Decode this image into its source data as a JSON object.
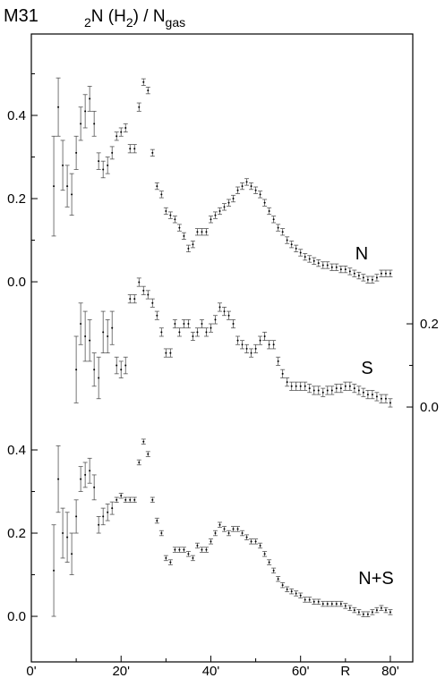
{
  "title": "M31",
  "ylabel": {
    "parts": [
      "2",
      "N (H",
      "2",
      ") / N",
      "gas"
    ],
    "subscript": [
      true,
      false,
      true,
      false,
      true
    ]
  },
  "x_axis": {
    "xlim": [
      0,
      85
    ],
    "xticks": [
      {
        "value": 0,
        "label": "0'"
      },
      {
        "value": 20,
        "label": "20'"
      },
      {
        "value": 40,
        "label": "40'"
      },
      {
        "value": 60,
        "label": "60'"
      },
      {
        "value": 80,
        "label": "80'"
      }
    ],
    "minor_xticks": [
      10,
      30,
      50,
      70
    ],
    "label": "R"
  },
  "chart_data": [
    {
      "type": "scatter",
      "label": "N",
      "axis_side": "left",
      "ylim": [
        -0.03,
        0.6
      ],
      "yticks": [
        {
          "value": 0,
          "label": "0.0"
        },
        {
          "value": 0.2,
          "label": "0.2"
        },
        {
          "value": 0.4,
          "label": "0.4"
        }
      ],
      "minor_yticks": [
        0.1,
        0.3,
        0.5
      ],
      "x": [
        5,
        6,
        7,
        8,
        9,
        10,
        11,
        12,
        13,
        14,
        15,
        16,
        17,
        18,
        19,
        20,
        21,
        22,
        23,
        24,
        25,
        26,
        27,
        28,
        29,
        30,
        31,
        32,
        33,
        34,
        35,
        36,
        37,
        38,
        39,
        40,
        41,
        42,
        43,
        44,
        45,
        46,
        47,
        48,
        49,
        50,
        51,
        52,
        53,
        54,
        55,
        56,
        57,
        58,
        59,
        60,
        61,
        62,
        63,
        64,
        65,
        66,
        67,
        68,
        69,
        70,
        71,
        72,
        73,
        74,
        75,
        76,
        77,
        78,
        79,
        80
      ],
      "values": [
        0.23,
        0.42,
        0.28,
        0.23,
        0.21,
        0.31,
        0.38,
        0.41,
        0.44,
        0.38,
        0.29,
        0.27,
        0.28,
        0.31,
        0.35,
        0.36,
        0.37,
        0.32,
        0.32,
        0.42,
        0.48,
        0.46,
        0.31,
        0.23,
        0.21,
        0.17,
        0.16,
        0.15,
        0.13,
        0.11,
        0.08,
        0.09,
        0.12,
        0.12,
        0.12,
        0.15,
        0.16,
        0.17,
        0.18,
        0.19,
        0.2,
        0.22,
        0.23,
        0.24,
        0.23,
        0.22,
        0.21,
        0.19,
        0.17,
        0.15,
        0.13,
        0.12,
        0.1,
        0.09,
        0.08,
        0.07,
        0.06,
        0.055,
        0.05,
        0.045,
        0.04,
        0.04,
        0.035,
        0.035,
        0.03,
        0.03,
        0.025,
        0.02,
        0.015,
        0.01,
        0.005,
        0.005,
        0.01,
        0.02,
        0.02,
        0.02
      ],
      "errors": [
        0.12,
        0.07,
        0.06,
        0.05,
        0.05,
        0.04,
        0.04,
        0.04,
        0.03,
        0.03,
        0.02,
        0.02,
        0.02,
        0.015,
        0.01,
        0.01,
        0.01,
        0.01,
        0.01,
        0.01,
        0.008,
        0.008,
        0.008,
        0.008,
        0.008,
        0.008,
        0.008,
        0.008,
        0.008,
        0.008,
        0.008,
        0.008,
        0.008,
        0.008,
        0.008,
        0.008,
        0.008,
        0.008,
        0.008,
        0.008,
        0.008,
        0.008,
        0.008,
        0.008,
        0.008,
        0.008,
        0.008,
        0.008,
        0.008,
        0.008,
        0.008,
        0.008,
        0.008,
        0.008,
        0.008,
        0.008,
        0.008,
        0.008,
        0.008,
        0.008,
        0.008,
        0.008,
        0.008,
        0.008,
        0.008,
        0.008,
        0.008,
        0.008,
        0.008,
        0.008,
        0.008,
        0.008,
        0.008,
        0.008,
        0.008,
        0.008
      ]
    },
    {
      "type": "scatter",
      "label": "S",
      "axis_side": "right",
      "ylim": [
        -0.03,
        0.6
      ],
      "yticks": [
        {
          "value": 0,
          "label": "0.0"
        },
        {
          "value": 0.2,
          "label": "0.2"
        }
      ],
      "minor_yticks": [
        0.1
      ],
      "x": [
        10,
        11,
        12,
        13,
        14,
        15,
        16,
        17,
        18,
        19,
        20,
        21,
        22,
        23,
        24,
        25,
        26,
        27,
        28,
        29,
        30,
        31,
        32,
        33,
        34,
        35,
        36,
        37,
        38,
        39,
        40,
        41,
        42,
        43,
        44,
        45,
        46,
        47,
        48,
        49,
        50,
        51,
        52,
        53,
        54,
        55,
        56,
        57,
        58,
        59,
        60,
        61,
        62,
        63,
        64,
        65,
        66,
        67,
        68,
        69,
        70,
        71,
        72,
        73,
        74,
        75,
        76,
        77,
        78,
        79,
        80
      ],
      "values": [
        0.09,
        0.2,
        0.17,
        0.16,
        0.09,
        0.07,
        0.18,
        0.17,
        0.19,
        0.1,
        0.09,
        0.1,
        0.26,
        0.26,
        0.3,
        0.28,
        0.27,
        0.25,
        0.22,
        0.18,
        0.13,
        0.13,
        0.2,
        0.18,
        0.2,
        0.2,
        0.17,
        0.18,
        0.2,
        0.18,
        0.19,
        0.21,
        0.24,
        0.23,
        0.22,
        0.2,
        0.16,
        0.15,
        0.14,
        0.13,
        0.14,
        0.16,
        0.17,
        0.15,
        0.15,
        0.11,
        0.08,
        0.06,
        0.05,
        0.05,
        0.05,
        0.05,
        0.045,
        0.04,
        0.04,
        0.035,
        0.04,
        0.04,
        0.045,
        0.045,
        0.05,
        0.05,
        0.045,
        0.04,
        0.035,
        0.03,
        0.03,
        0.025,
        0.02,
        0.02,
        0.01
      ],
      "errors": [
        0.08,
        0.05,
        0.06,
        0.05,
        0.04,
        0.05,
        0.05,
        0.04,
        0.04,
        0.02,
        0.02,
        0.02,
        0.01,
        0.01,
        0.01,
        0.01,
        0.01,
        0.01,
        0.01,
        0.01,
        0.01,
        0.01,
        0.01,
        0.01,
        0.01,
        0.01,
        0.01,
        0.01,
        0.01,
        0.01,
        0.01,
        0.01,
        0.01,
        0.01,
        0.01,
        0.01,
        0.01,
        0.01,
        0.01,
        0.01,
        0.01,
        0.01,
        0.01,
        0.01,
        0.01,
        0.01,
        0.01,
        0.01,
        0.01,
        0.01,
        0.01,
        0.01,
        0.01,
        0.01,
        0.01,
        0.01,
        0.01,
        0.01,
        0.01,
        0.01,
        0.01,
        0.01,
        0.01,
        0.01,
        0.01,
        0.01,
        0.01,
        0.01,
        0.01,
        0.01,
        0.01
      ]
    },
    {
      "type": "scatter",
      "label": "N+S",
      "axis_side": "left",
      "ylim": [
        -0.03,
        0.6
      ],
      "yticks": [
        {
          "value": 0,
          "label": "0.0"
        },
        {
          "value": 0.2,
          "label": "0.2"
        },
        {
          "value": 0.4,
          "label": "0.4"
        }
      ],
      "minor_yticks": [
        0.1,
        0.3
      ],
      "x": [
        5,
        6,
        7,
        8,
        9,
        10,
        11,
        12,
        13,
        14,
        15,
        16,
        17,
        18,
        19,
        20,
        21,
        22,
        23,
        24,
        25,
        26,
        27,
        28,
        29,
        30,
        31,
        32,
        33,
        34,
        35,
        36,
        37,
        38,
        39,
        40,
        41,
        42,
        43,
        44,
        45,
        46,
        47,
        48,
        49,
        50,
        51,
        52,
        53,
        54,
        55,
        56,
        57,
        58,
        59,
        60,
        61,
        62,
        63,
        64,
        65,
        66,
        67,
        68,
        69,
        70,
        71,
        72,
        73,
        74,
        75,
        76,
        77,
        78,
        79,
        80
      ],
      "values": [
        0.11,
        0.33,
        0.2,
        0.19,
        0.15,
        0.24,
        0.33,
        0.34,
        0.35,
        0.31,
        0.22,
        0.24,
        0.25,
        0.26,
        0.28,
        0.29,
        0.28,
        0.28,
        0.28,
        0.37,
        0.42,
        0.39,
        0.28,
        0.23,
        0.2,
        0.14,
        0.13,
        0.16,
        0.16,
        0.16,
        0.15,
        0.14,
        0.17,
        0.16,
        0.16,
        0.18,
        0.2,
        0.22,
        0.21,
        0.2,
        0.21,
        0.21,
        0.2,
        0.19,
        0.18,
        0.18,
        0.17,
        0.15,
        0.13,
        0.11,
        0.09,
        0.075,
        0.065,
        0.06,
        0.055,
        0.05,
        0.04,
        0.04,
        0.035,
        0.035,
        0.03,
        0.03,
        0.03,
        0.03,
        0.03,
        0.025,
        0.02,
        0.015,
        0.01,
        0.005,
        0.005,
        0.01,
        0.015,
        0.02,
        0.015,
        0.01
      ],
      "errors": [
        0.11,
        0.08,
        0.06,
        0.06,
        0.05,
        0.04,
        0.03,
        0.03,
        0.03,
        0.03,
        0.02,
        0.02,
        0.02,
        0.015,
        0.006,
        0.006,
        0.006,
        0.006,
        0.006,
        0.006,
        0.006,
        0.006,
        0.006,
        0.006,
        0.006,
        0.006,
        0.006,
        0.006,
        0.006,
        0.006,
        0.006,
        0.006,
        0.006,
        0.006,
        0.006,
        0.006,
        0.006,
        0.006,
        0.006,
        0.006,
        0.006,
        0.006,
        0.006,
        0.006,
        0.006,
        0.006,
        0.006,
        0.006,
        0.006,
        0.006,
        0.006,
        0.006,
        0.006,
        0.006,
        0.006,
        0.006,
        0.006,
        0.006,
        0.006,
        0.006,
        0.006,
        0.006,
        0.006,
        0.006,
        0.006,
        0.006,
        0.006,
        0.006,
        0.006,
        0.006,
        0.006,
        0.006,
        0.006,
        0.006,
        0.006,
        0.006
      ]
    }
  ]
}
